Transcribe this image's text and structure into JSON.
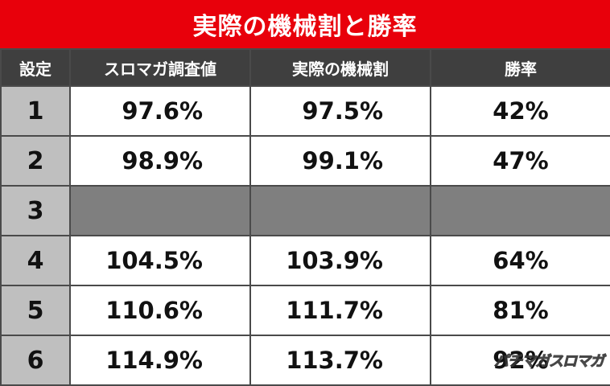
{
  "title": "実際の機械割と勝率",
  "headers": [
    "設定",
    "スロマガ調査値",
    "実際の機械割",
    "勝率"
  ],
  "rows": [
    {
      "setting": "1",
      "survey": "97.6%",
      "actual": "97.5%",
      "rate": "42%"
    },
    {
      "setting": "2",
      "survey": "98.9%",
      "actual": "99.1%",
      "rate": "47%"
    },
    {
      "setting": "3",
      "survey": "",
      "actual": "",
      "rate": ""
    },
    {
      "setting": "4",
      "survey": "104.5%",
      "actual": "103.9%",
      "rate": "64%"
    },
    {
      "setting": "5",
      "survey": "110.6%",
      "actual": "111.7%",
      "rate": "81%"
    },
    {
      "setting": "6",
      "survey": "114.9%",
      "actual": "113.7%",
      "rate": "92%"
    }
  ],
  "watermark": "パチマガスロマガ"
}
